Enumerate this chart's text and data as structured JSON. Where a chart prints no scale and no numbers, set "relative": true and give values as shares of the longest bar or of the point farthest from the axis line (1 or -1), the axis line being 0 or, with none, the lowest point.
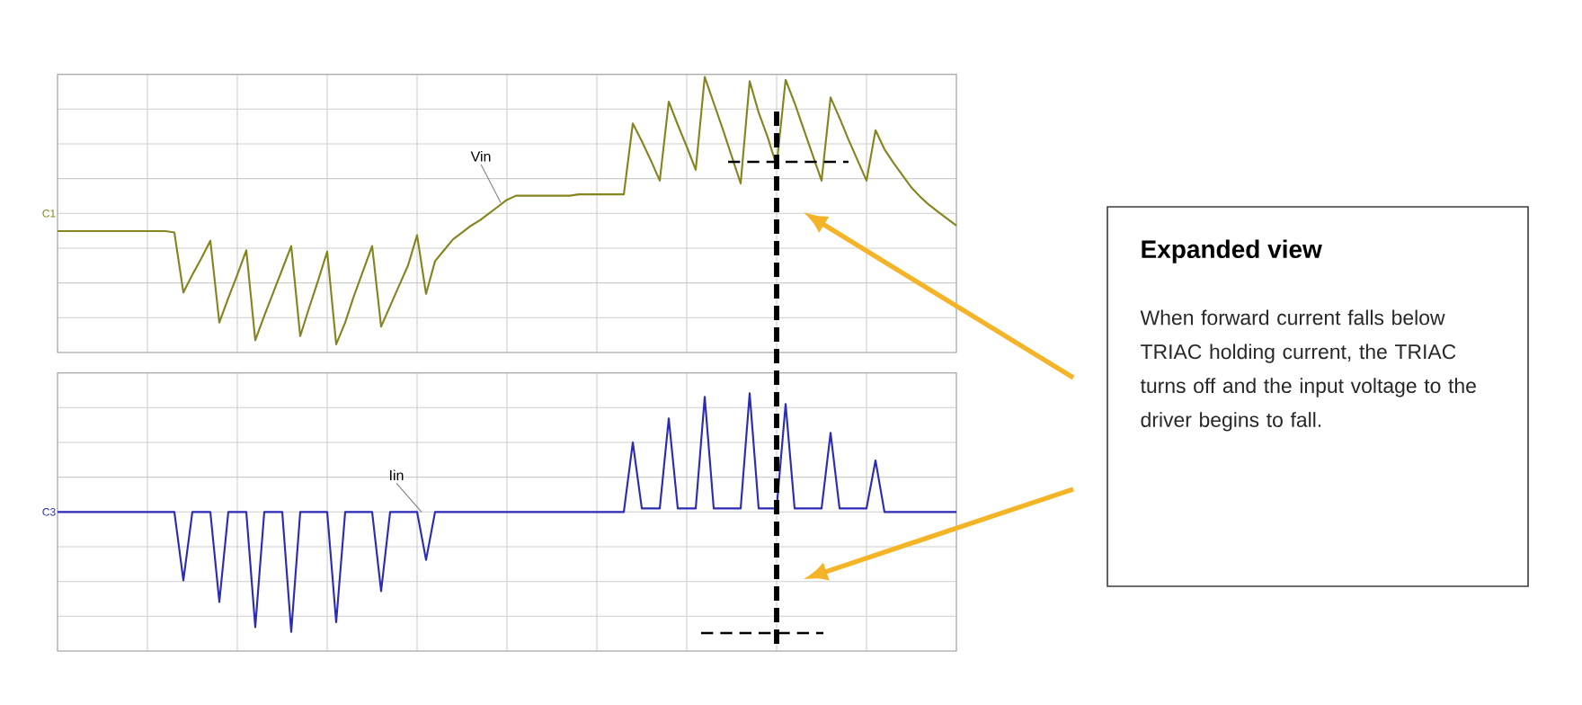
{
  "chart_data": [
    {
      "type": "line",
      "relative": true,
      "grid": true,
      "tick_labels": false,
      "marker": "none",
      "line_style": "solid",
      "categories": [
        null,
        null,
        null,
        null,
        null,
        null,
        null,
        null,
        null,
        null,
        null,
        null,
        null,
        null,
        null,
        null,
        null,
        null,
        null,
        null,
        null,
        null,
        null,
        null,
        null,
        null,
        null,
        null,
        null,
        null,
        null,
        null,
        null,
        null,
        null,
        null,
        null,
        null,
        null,
        null,
        null,
        null,
        null,
        null,
        null,
        null,
        null,
        null,
        null,
        null,
        null,
        null,
        null,
        null,
        null,
        null,
        null,
        null,
        null,
        null,
        null,
        null,
        null,
        null,
        null,
        null,
        null,
        null,
        null,
        null,
        null,
        null,
        null,
        null,
        null,
        null,
        null,
        null,
        null,
        null,
        null,
        null,
        null,
        null,
        null,
        null,
        null,
        null,
        null,
        null,
        null,
        null,
        null,
        null,
        null,
        null,
        null,
        null,
        null,
        null,
        null
      ],
      "series": [
        {
          "name": "Vin",
          "color": "#85851f",
          "values": [
            -0.13,
            -0.13,
            -0.13,
            -0.13,
            -0.13,
            -0.13,
            -0.13,
            -0.13,
            -0.13,
            -0.13,
            -0.13,
            -0.13,
            -0.13,
            -0.14,
            -0.58,
            -0.45,
            -0.33,
            -0.2,
            -0.8,
            -0.62,
            -0.45,
            -0.27,
            -0.93,
            -0.75,
            -0.58,
            -0.41,
            -0.24,
            -0.9,
            -0.69,
            -0.49,
            -0.28,
            -0.96,
            -0.8,
            -0.6,
            -0.42,
            -0.24,
            -0.83,
            -0.68,
            -0.53,
            -0.38,
            -0.16,
            -0.59,
            -0.35,
            -0.27,
            -0.19,
            -0.14,
            -0.09,
            -0.05,
            0,
            0.05,
            0.1,
            0.13,
            0.13,
            0.13,
            0.13,
            0.13,
            0.13,
            0.13,
            0.14,
            0.14,
            0.14,
            0.14,
            0.14,
            0.14,
            0.66,
            0.53,
            0.39,
            0.24,
            0.82,
            0.65,
            0.49,
            0.32,
            1.0,
            0.81,
            0.62,
            0.42,
            0.22,
            0.97,
            0.74,
            0.56,
            0.35,
            0.98,
            0.81,
            0.62,
            0.43,
            0.24,
            0.85,
            0.7,
            0.54,
            0.39,
            0.24,
            0.61,
            0.47,
            0.37,
            0.28,
            0.19,
            0.12,
            0.06,
            0.01,
            -0.04,
            -0.09
          ]
        }
      ],
      "annotations": [
        "C1"
      ]
    },
    {
      "type": "line",
      "relative": true,
      "grid": true,
      "tick_labels": false,
      "marker": "none",
      "line_style": "solid",
      "categories": [
        null,
        null,
        null,
        null,
        null,
        null,
        null,
        null,
        null,
        null,
        null,
        null,
        null,
        null,
        null,
        null,
        null,
        null,
        null,
        null,
        null,
        null,
        null,
        null,
        null,
        null,
        null,
        null,
        null,
        null,
        null,
        null,
        null,
        null,
        null,
        null,
        null,
        null,
        null,
        null,
        null,
        null,
        null,
        null,
        null,
        null,
        null,
        null,
        null,
        null,
        null,
        null,
        null,
        null,
        null,
        null,
        null,
        null,
        null,
        null,
        null,
        null,
        null,
        null,
        null,
        null,
        null,
        null,
        null,
        null,
        null,
        null,
        null,
        null,
        null,
        null,
        null,
        null,
        null,
        null,
        null,
        null,
        null,
        null,
        null,
        null,
        null,
        null,
        null,
        null,
        null,
        null,
        null,
        null,
        null,
        null,
        null,
        null,
        null,
        null,
        null
      ],
      "series": [
        {
          "name": "Iin",
          "color": "#2b2bb5",
          "values": [
            0,
            0,
            0,
            0,
            0,
            0,
            0,
            0,
            0,
            0,
            0,
            0,
            0,
            0,
            -0.57,
            0,
            0,
            0,
            -0.75,
            0,
            0,
            0,
            -0.96,
            0,
            0,
            0,
            -1.0,
            0,
            0,
            0,
            0,
            -0.92,
            0,
            0,
            0,
            0,
            -0.66,
            0,
            0,
            0,
            0,
            -0.4,
            0,
            0,
            0,
            0,
            0,
            0,
            0,
            0,
            0,
            0,
            0,
            0,
            0,
            0,
            0,
            0,
            0,
            0,
            0,
            0,
            0,
            0,
            0.58,
            0.03,
            0.03,
            0.03,
            0.78,
            0.03,
            0.03,
            0.03,
            0.96,
            0.03,
            0.03,
            0.03,
            0.03,
            0.99,
            0.03,
            0.03,
            0.03,
            0.9,
            0.03,
            0.03,
            0.03,
            0.03,
            0.66,
            0.03,
            0.03,
            0.03,
            0.03,
            0.43,
            0,
            0,
            0,
            0,
            0,
            0,
            0,
            0,
            0
          ]
        }
      ],
      "annotations": [
        "C3"
      ]
    },
    {
      "type": "other",
      "title": "Expanded view",
      "annotations": [
        "When forward current falls below TRIAC holding current, the TRIAC turns off and the input voltage to the driver begins  to fall."
      ]
    }
  ]
}
